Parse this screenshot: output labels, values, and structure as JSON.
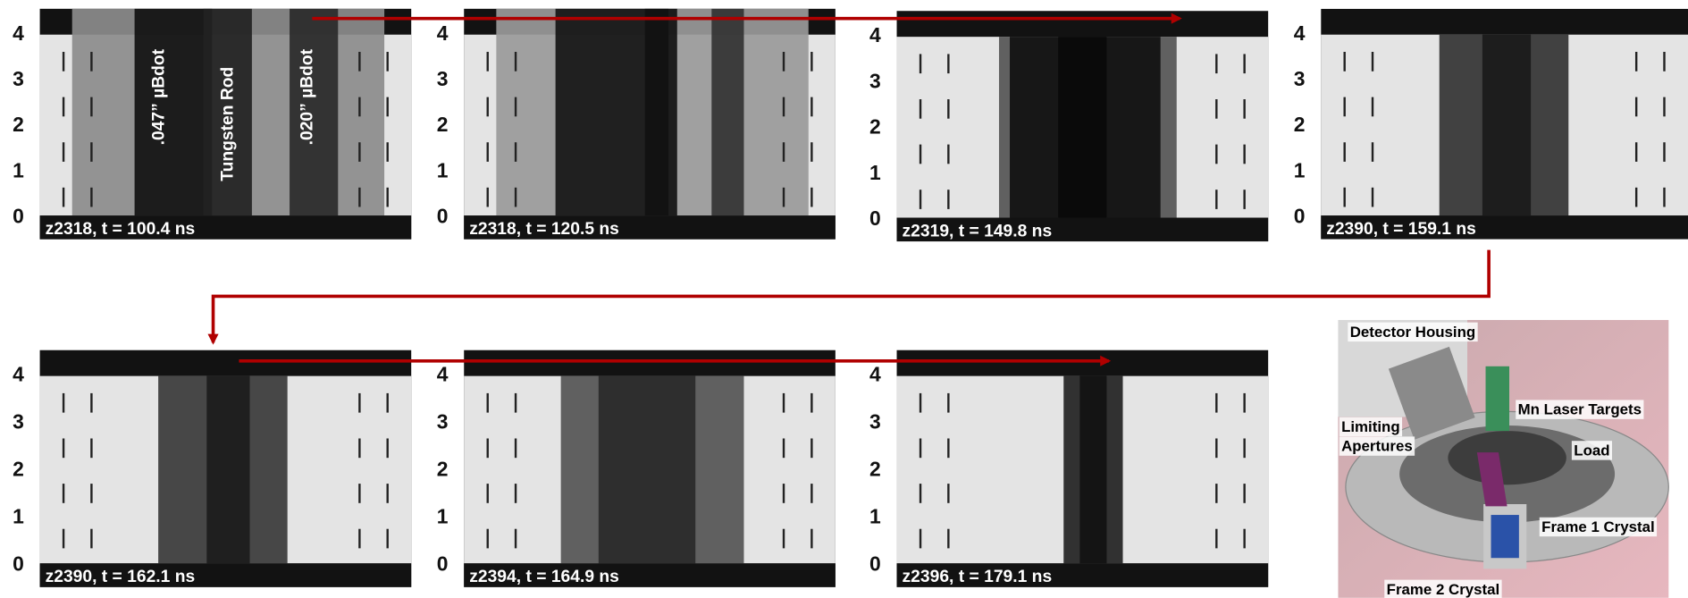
{
  "panels": [
    {
      "caption": "z2318, t = 100.4 ns"
    },
    {
      "caption": "z2318, t = 120.5 ns"
    },
    {
      "caption": "z2319, t = 149.8 ns"
    },
    {
      "caption": "z2390, t = 159.1 ns"
    },
    {
      "caption": "z2390, t = 162.1 ns"
    },
    {
      "caption": "z2394, t = 164.9 ns"
    },
    {
      "caption": "z2396, t = 179.1 ns"
    }
  ],
  "y_tick_labels": [
    0,
    1,
    2,
    3,
    4
  ],
  "annotations": [
    ".047” µBdot",
    "Tungsten Rod",
    ".020” µBdot"
  ],
  "photo_labels": [
    "Detector Housing",
    "Mn Laser Targets",
    "Limiting",
    "Apertures",
    "Load",
    "Frame 1 Crystal",
    "Frame 2 Crystal"
  ]
}
